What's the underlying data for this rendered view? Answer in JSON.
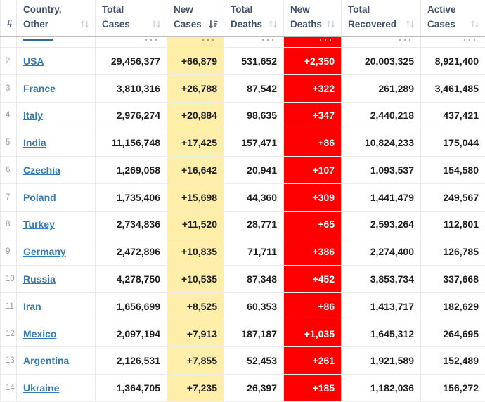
{
  "table": {
    "columns": [
      {
        "id": "rank",
        "lines": [
          "#"
        ],
        "sort": null
      },
      {
        "id": "country",
        "lines": [
          "Country,",
          "Other"
        ],
        "sort": "inactive"
      },
      {
        "id": "total_cases",
        "lines": [
          "Total",
          "Cases"
        ],
        "sort": "inactive"
      },
      {
        "id": "new_cases",
        "lines": [
          "New",
          "Cases"
        ],
        "sort": "desc"
      },
      {
        "id": "total_deaths",
        "lines": [
          "Total",
          "Deaths"
        ],
        "sort": "inactive"
      },
      {
        "id": "new_deaths",
        "lines": [
          "New",
          "Deaths"
        ],
        "sort": "inactive"
      },
      {
        "id": "total_recovered",
        "lines": [
          "Total",
          "Recovered"
        ],
        "sort": "inactive"
      },
      {
        "id": "active_cases",
        "lines": [
          "Active",
          "Cases"
        ],
        "sort": "inactive"
      }
    ],
    "clipped_top_row": {
      "visible": true,
      "note": "row partially scrolled under sticky header; only link underline and bottoms of digits visible"
    },
    "rows": [
      {
        "rank": "2",
        "country": "USA",
        "total_cases": "29,456,377",
        "new_cases": "+66,879",
        "total_deaths": "531,652",
        "new_deaths": "+2,350",
        "total_recovered": "20,003,325",
        "active_cases": "8,921,400"
      },
      {
        "rank": "3",
        "country": "France",
        "total_cases": "3,810,316",
        "new_cases": "+26,788",
        "total_deaths": "87,542",
        "new_deaths": "+322",
        "total_recovered": "261,289",
        "active_cases": "3,461,485"
      },
      {
        "rank": "4",
        "country": "Italy",
        "total_cases": "2,976,274",
        "new_cases": "+20,884",
        "total_deaths": "98,635",
        "new_deaths": "+347",
        "total_recovered": "2,440,218",
        "active_cases": "437,421"
      },
      {
        "rank": "5",
        "country": "India",
        "total_cases": "11,156,748",
        "new_cases": "+17,425",
        "total_deaths": "157,471",
        "new_deaths": "+86",
        "total_recovered": "10,824,233",
        "active_cases": "175,044"
      },
      {
        "rank": "6",
        "country": "Czechia",
        "total_cases": "1,269,058",
        "new_cases": "+16,642",
        "total_deaths": "20,941",
        "new_deaths": "+107",
        "total_recovered": "1,093,537",
        "active_cases": "154,580"
      },
      {
        "rank": "7",
        "country": "Poland",
        "total_cases": "1,735,406",
        "new_cases": "+15,698",
        "total_deaths": "44,360",
        "new_deaths": "+309",
        "total_recovered": "1,441,479",
        "active_cases": "249,567"
      },
      {
        "rank": "8",
        "country": "Turkey",
        "total_cases": "2,734,836",
        "new_cases": "+11,520",
        "total_deaths": "28,771",
        "new_deaths": "+65",
        "total_recovered": "2,593,264",
        "active_cases": "112,801"
      },
      {
        "rank": "9",
        "country": "Germany",
        "total_cases": "2,472,896",
        "new_cases": "+10,835",
        "total_deaths": "71,711",
        "new_deaths": "+386",
        "total_recovered": "2,274,400",
        "active_cases": "126,785"
      },
      {
        "rank": "10",
        "country": "Russia",
        "total_cases": "4,278,750",
        "new_cases": "+10,535",
        "total_deaths": "87,348",
        "new_deaths": "+452",
        "total_recovered": "3,853,734",
        "active_cases": "337,668"
      },
      {
        "rank": "11",
        "country": "Iran",
        "total_cases": "1,656,699",
        "new_cases": "+8,525",
        "total_deaths": "60,353",
        "new_deaths": "+86",
        "total_recovered": "1,413,717",
        "active_cases": "182,629"
      },
      {
        "rank": "12",
        "country": "Mexico",
        "total_cases": "2,097,194",
        "new_cases": "+7,913",
        "total_deaths": "187,187",
        "new_deaths": "+1,035",
        "total_recovered": "1,645,312",
        "active_cases": "264,695"
      },
      {
        "rank": "13",
        "country": "Argentina",
        "total_cases": "2,126,531",
        "new_cases": "+7,855",
        "total_deaths": "52,453",
        "new_deaths": "+261",
        "total_recovered": "1,921,589",
        "active_cases": "152,489"
      },
      {
        "rank": "14",
        "country": "Ukraine",
        "total_cases": "1,364,705",
        "new_cases": "+7,235",
        "total_deaths": "26,397",
        "new_deaths": "+185",
        "total_recovered": "1,182,036",
        "active_cases": "156,272"
      }
    ]
  },
  "colors": {
    "link_blue": "#337ab7",
    "header_text": "#42506a",
    "new_cases_bg": "#ffeeaa",
    "new_deaths_bg": "#ff0000",
    "new_deaths_text": "#ffffff",
    "number_text": "#1f1f1f",
    "rank_text": "#9aa0a6",
    "grid_border": "#e9e9e9"
  }
}
